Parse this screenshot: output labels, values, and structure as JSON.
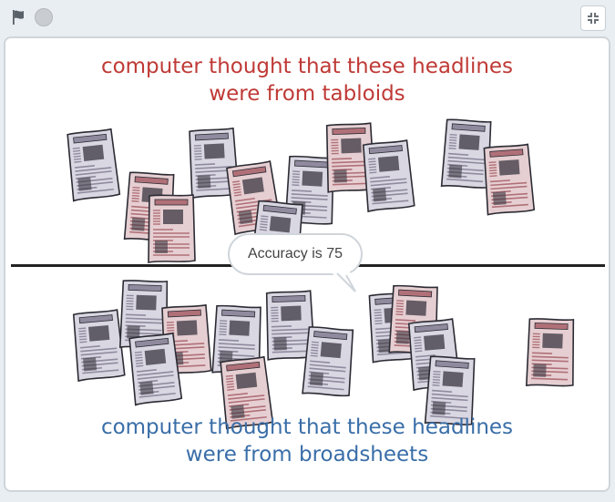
{
  "toolbar": {
    "flag_icon": "green-flag-icon",
    "stop_icon": "stop-icon",
    "fullscreen_icon": "exit-fullscreen-icon"
  },
  "stage": {
    "heading_top": {
      "line1": "computer thought that these headlines",
      "line2": "were from  tabloids",
      "color": "#bf3a36"
    },
    "heading_bottom": {
      "line1": "computer thought that these headlines",
      "line2": "were from  broadsheets",
      "color": "#3a6ea8"
    },
    "speech_bubble": "Accuracy is 75",
    "tabloid_count": 11,
    "broadsheet_count": 13
  }
}
